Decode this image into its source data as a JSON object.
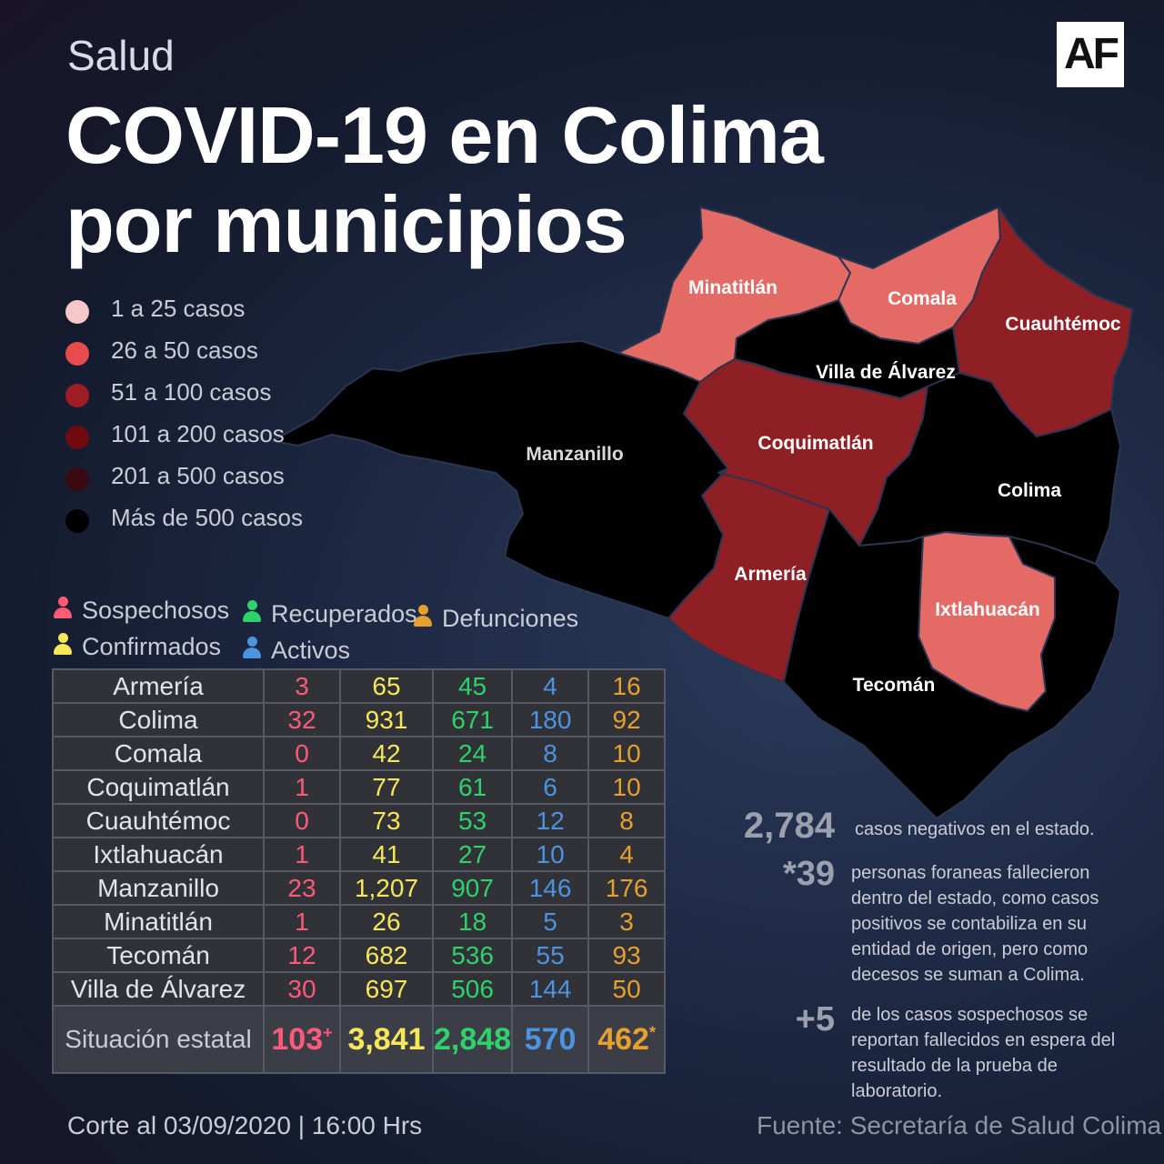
{
  "header": {
    "section": "Salud",
    "logo": "AF",
    "title_line1": "COVID-19 en Colima",
    "title_line2": "por municipios"
  },
  "legend": [
    {
      "label": "1 a 25 casos",
      "color": "#f6c7c9"
    },
    {
      "label": "26 a  50 casos",
      "color": "#e84b4b"
    },
    {
      "label": "51 a  100 casos",
      "color": "#9e1c24"
    },
    {
      "label": "101 a  200 casos",
      "color": "#6e0a10"
    },
    {
      "label": "201  a  500 casos",
      "color": "#3a0a12"
    },
    {
      "label": "Más de 500 casos",
      "color": "#000000"
    }
  ],
  "map": {
    "municipios": [
      {
        "name": "Minatitlán",
        "color": "#e46a66"
      },
      {
        "name": "Comala",
        "color": "#e46a66"
      },
      {
        "name": "Cuauhtémoc",
        "color": "#8e1f25"
      },
      {
        "name": "Villa de Álvarez",
        "color": "#000000"
      },
      {
        "name": "Manzanillo",
        "color": "#000000"
      },
      {
        "name": "Coquimatlán",
        "color": "#8e1f25"
      },
      {
        "name": "Colima",
        "color": "#000000"
      },
      {
        "name": "Armería",
        "color": "#8e1f25"
      },
      {
        "name": "Ixtlahuacán",
        "color": "#e46a66"
      },
      {
        "name": "Tecomán",
        "color": "#000000"
      }
    ]
  },
  "categories": {
    "sospechosos": {
      "label": "Sospechosos",
      "color": "#ff5a78"
    },
    "confirmados": {
      "label": "Confirmados",
      "color": "#f6e65a"
    },
    "recuperados": {
      "label": "Recuperados",
      "color": "#2fd26a"
    },
    "activos": {
      "label": "Activos",
      "color": "#4c93e0"
    },
    "defunciones": {
      "label": "Defunciones",
      "color": "#e6a030"
    }
  },
  "table": {
    "rows": [
      {
        "municipio": "Armería",
        "sospechosos": "3",
        "confirmados": "65",
        "recuperados": "45",
        "activos": "4",
        "defunciones": "16"
      },
      {
        "municipio": "Colima",
        "sospechosos": "32",
        "confirmados": "931",
        "recuperados": "671",
        "activos": "180",
        "defunciones": "92"
      },
      {
        "municipio": "Comala",
        "sospechosos": "0",
        "confirmados": "42",
        "recuperados": "24",
        "activos": "8",
        "defunciones": "10"
      },
      {
        "municipio": "Coquimatlán",
        "sospechosos": "1",
        "confirmados": "77",
        "recuperados": "61",
        "activos": "6",
        "defunciones": "10"
      },
      {
        "municipio": "Cuauhtémoc",
        "sospechosos": "0",
        "confirmados": "73",
        "recuperados": "53",
        "activos": "12",
        "defunciones": "8"
      },
      {
        "municipio": "Ixtlahuacán",
        "sospechosos": "1",
        "confirmados": "41",
        "recuperados": "27",
        "activos": "10",
        "defunciones": "4"
      },
      {
        "municipio": "Manzanillo",
        "sospechosos": "23",
        "confirmados": "1,207",
        "recuperados": "907",
        "activos": "146",
        "defunciones": "176"
      },
      {
        "municipio": "Minatitlán",
        "sospechosos": "1",
        "confirmados": "26",
        "recuperados": "18",
        "activos": "5",
        "defunciones": "3"
      },
      {
        "municipio": "Tecomán",
        "sospechosos": "12",
        "confirmados": "682",
        "recuperados": "536",
        "activos": "55",
        "defunciones": "93"
      },
      {
        "municipio": "Villa de Álvarez",
        "sospechosos": "30",
        "confirmados": "697",
        "recuperados": "506",
        "activos": "144",
        "defunciones": "50"
      }
    ],
    "total": {
      "label": "Situación estatal",
      "sospechosos": "103",
      "sospechosos_mark": "+",
      "confirmados": "3,841",
      "recuperados": "2,848",
      "activos": "570",
      "defunciones": "462",
      "defunciones_mark": "*"
    }
  },
  "stats": {
    "negativos_num": "2,784",
    "negativos_text": "casos negativos en el estado.",
    "foraneas_num": "*39",
    "foraneas_text": "personas foraneas fallecieron dentro del estado, como casos positivos se contabiliza en su entidad de origen, pero como decesos se suman a Colima.",
    "sospechosos_num": "+5",
    "sospechosos_text": "de los casos sospechosos se reportan fallecidos en espera del resultado de la prueba de laboratorio."
  },
  "footer": {
    "corte": "Corte al 03/09/2020 | 16:00 Hrs",
    "fuente": "Fuente: Secretaría de Salud Colima"
  }
}
